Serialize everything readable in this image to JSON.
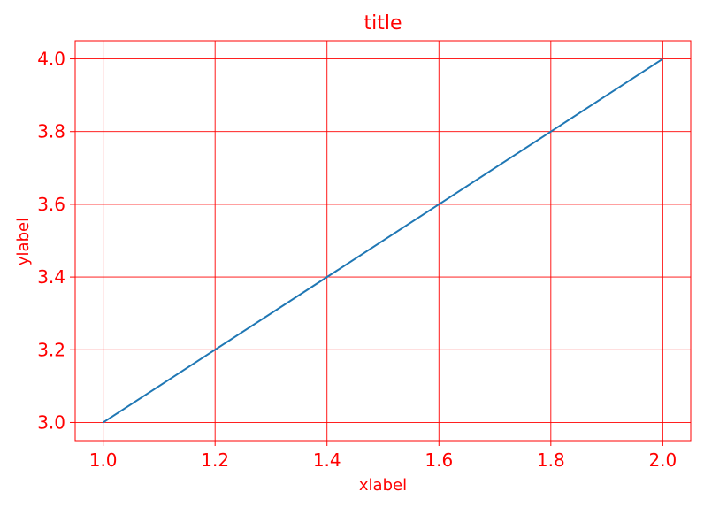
{
  "chart_data": {
    "type": "line",
    "title": "title",
    "xlabel": "xlabel",
    "ylabel": "ylabel",
    "x": [
      1.0,
      2.0
    ],
    "series": [
      {
        "values": [
          3.0,
          4.0
        ]
      }
    ],
    "xlim": [
      0.95,
      2.05
    ],
    "ylim": [
      2.95,
      4.05
    ],
    "xticks": [
      1.0,
      1.2,
      1.4,
      1.6,
      1.8,
      2.0
    ],
    "yticks": [
      3.0,
      3.2,
      3.4,
      3.6,
      3.8,
      4.0
    ],
    "xtick_labels": [
      "1.0",
      "1.2",
      "1.4",
      "1.6",
      "1.8",
      "2.0"
    ],
    "ytick_labels": [
      "3.0",
      "3.2",
      "3.4",
      "3.6",
      "3.8",
      "4.0"
    ],
    "grid": true,
    "colors": {
      "accent": "#ff0000",
      "line": "#1f77b4",
      "grid": "#ff0000",
      "frame": "#ff0000",
      "background": "#ffffff"
    }
  }
}
